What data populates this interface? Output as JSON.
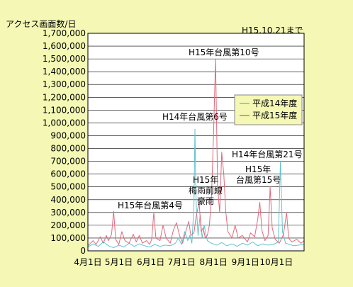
{
  "chart_data": {
    "type": "line",
    "ylabel": "アクセス画面数/日",
    "note": "H15.10.21まで",
    "ylim": [
      0,
      1700000
    ],
    "y_ticks": [
      0,
      100000,
      200000,
      300000,
      400000,
      500000,
      600000,
      700000,
      800000,
      900000,
      1000000,
      1100000,
      1200000,
      1300000,
      1400000,
      1500000,
      1600000,
      1700000
    ],
    "y_tick_labels": [
      "0",
      "100,000",
      "200,000",
      "300,000",
      "400,000",
      "500,000",
      "600,000",
      "700,000",
      "800,000",
      "900,000",
      "1,000,000",
      "1,100,000",
      "1,200,000",
      "1,300,000",
      "1,400,000",
      "1,500,000",
      "1,600,000",
      "1,700,000"
    ],
    "x_tick_labels": [
      "4月1日",
      "5月1日",
      "6月1日",
      "7月1日",
      "8月1日",
      "9月1日",
      "10月1日"
    ],
    "grid": true,
    "legend_position": "right",
    "series": [
      {
        "name": "平成14年度",
        "color": "#5fc4cc",
        "points": [
          [
            0,
            30000
          ],
          [
            5,
            55000
          ],
          [
            10,
            35000
          ],
          [
            15,
            70000
          ],
          [
            20,
            40000
          ],
          [
            25,
            25000
          ],
          [
            30,
            45000
          ],
          [
            35,
            30000
          ],
          [
            40,
            60000
          ],
          [
            45,
            35000
          ],
          [
            50,
            55000
          ],
          [
            55,
            40000
          ],
          [
            60,
            30000
          ],
          [
            65,
            50000
          ],
          [
            70,
            35000
          ],
          [
            75,
            45000
          ],
          [
            80,
            40000
          ],
          [
            85,
            60000
          ],
          [
            88,
            100000
          ],
          [
            91,
            50000
          ],
          [
            94,
            150000
          ],
          [
            97,
            80000
          ],
          [
            99,
            120000
          ],
          [
            101,
            60000
          ],
          [
            103,
            350000
          ],
          [
            104,
            950000
          ],
          [
            105,
            400000
          ],
          [
            107,
            120000
          ],
          [
            109,
            280000
          ],
          [
            111,
            100000
          ],
          [
            113,
            200000
          ],
          [
            116,
            80000
          ],
          [
            120,
            60000
          ],
          [
            125,
            45000
          ],
          [
            130,
            65000
          ],
          [
            135,
            40000
          ],
          [
            140,
            55000
          ],
          [
            145,
            35000
          ],
          [
            150,
            60000
          ],
          [
            155,
            45000
          ],
          [
            160,
            70000
          ],
          [
            165,
            40000
          ],
          [
            170,
            55000
          ],
          [
            175,
            45000
          ],
          [
            180,
            50000
          ],
          [
            185,
            70000
          ],
          [
            187,
            700000
          ],
          [
            189,
            150000
          ],
          [
            192,
            60000
          ],
          [
            196,
            50000
          ],
          [
            200,
            40000
          ],
          [
            205,
            45000
          ],
          [
            210,
            55000
          ]
        ]
      },
      {
        "name": "平成15年度",
        "color": "#e06a7c",
        "points": [
          [
            0,
            40000
          ],
          [
            5,
            80000
          ],
          [
            8,
            50000
          ],
          [
            12,
            110000
          ],
          [
            15,
            60000
          ],
          [
            18,
            120000
          ],
          [
            20,
            80000
          ],
          [
            23,
            130000
          ],
          [
            25,
            310000
          ],
          [
            27,
            90000
          ],
          [
            30,
            50000
          ],
          [
            33,
            150000
          ],
          [
            36,
            80000
          ],
          [
            40,
            60000
          ],
          [
            44,
            130000
          ],
          [
            47,
            70000
          ],
          [
            50,
            120000
          ],
          [
            53,
            60000
          ],
          [
            57,
            80000
          ],
          [
            60,
            50000
          ],
          [
            62,
            90000
          ],
          [
            64,
            300000
          ],
          [
            66,
            100000
          ],
          [
            70,
            80000
          ],
          [
            73,
            200000
          ],
          [
            76,
            100000
          ],
          [
            80,
            60000
          ],
          [
            83,
            160000
          ],
          [
            86,
            220000
          ],
          [
            89,
            120000
          ],
          [
            92,
            60000
          ],
          [
            95,
            150000
          ],
          [
            98,
            230000
          ],
          [
            100,
            120000
          ],
          [
            103,
            140000
          ],
          [
            105,
            260000
          ],
          [
            108,
            380000
          ],
          [
            110,
            150000
          ],
          [
            112,
            180000
          ],
          [
            114,
            100000
          ],
          [
            116,
            120000
          ],
          [
            118,
            200000
          ],
          [
            120,
            420000
          ],
          [
            122,
            900000
          ],
          [
            124,
            1500000
          ],
          [
            126,
            500000
          ],
          [
            128,
            300000
          ],
          [
            130,
            770000
          ],
          [
            132,
            600000
          ],
          [
            134,
            300000
          ],
          [
            136,
            150000
          ],
          [
            140,
            100000
          ],
          [
            143,
            200000
          ],
          [
            146,
            100000
          ],
          [
            150,
            120000
          ],
          [
            155,
            70000
          ],
          [
            158,
            140000
          ],
          [
            162,
            110000
          ],
          [
            165,
            250000
          ],
          [
            167,
            380000
          ],
          [
            169,
            160000
          ],
          [
            172,
            80000
          ],
          [
            175,
            120000
          ],
          [
            177,
            500000
          ],
          [
            179,
            180000
          ],
          [
            182,
            90000
          ],
          [
            186,
            60000
          ],
          [
            190,
            130000
          ],
          [
            193,
            300000
          ],
          [
            195,
            100000
          ],
          [
            198,
            70000
          ],
          [
            203,
            90000
          ],
          [
            207,
            60000
          ],
          [
            210,
            80000
          ]
        ]
      }
    ],
    "annotations": [
      {
        "text": "H15年台風第10号"
      },
      {
        "text": "H14年台風第6号"
      },
      {
        "text": "H14年台風第21号"
      },
      {
        "text": "H15年台風第4号"
      },
      {
        "text": "H15年"
      },
      {
        "text": "梅雨前線"
      },
      {
        "text": "豪雨"
      },
      {
        "text": "H15年"
      },
      {
        "text": "台風第15号"
      }
    ]
  },
  "style": {
    "background": "#f4f8b4",
    "plot_background": "#ffffff",
    "grid_color": "#000000",
    "legend_background": "#f4f8b4"
  }
}
